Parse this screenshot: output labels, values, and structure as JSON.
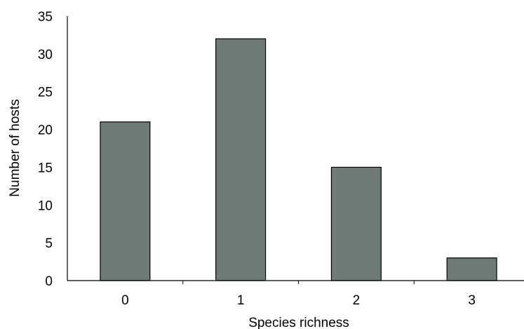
{
  "chart_data": {
    "type": "bar",
    "categories": [
      "0",
      "1",
      "2",
      "3"
    ],
    "values": [
      21,
      32,
      15,
      3
    ],
    "title": "",
    "xlabel": "Species richness",
    "ylabel": "Number of hosts",
    "ylim": [
      0,
      35
    ],
    "yticks": [
      0,
      5,
      10,
      15,
      20,
      25,
      30,
      35
    ],
    "grid": false,
    "legend": "none",
    "bar_color": "#6f7b78",
    "bar_edge_color": "#000000"
  }
}
